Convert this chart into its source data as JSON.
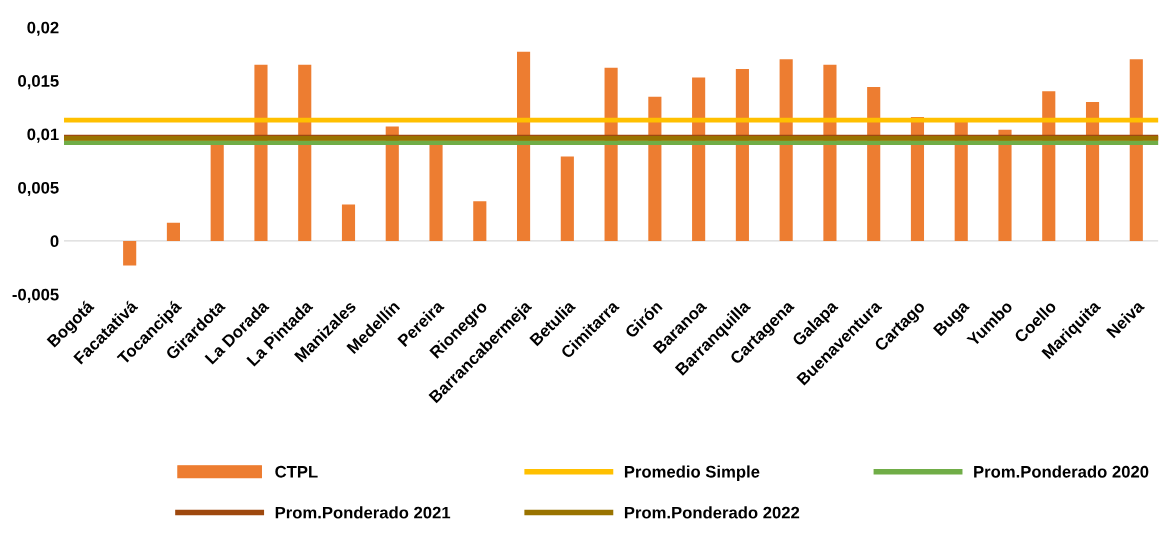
{
  "chart_data": {
    "type": "bar",
    "categories": [
      "Bogotá",
      "Facatativá",
      "Tocancipá",
      "Girardota",
      "La Dorada",
      "La Pintada",
      "Manizales",
      "Medellín",
      "Pereira",
      "Rionegro",
      "Barrancabermeja",
      "Betulia",
      "Cimitarra",
      "Girón",
      "Baranoa",
      "Barranquilla",
      "Cartagena",
      "Galapa",
      "Buenaventura",
      "Cartago",
      "Buga",
      "Yumbo",
      "Coello",
      "Mariquita",
      "Neiva"
    ],
    "series": [
      {
        "name": "CTPL",
        "color": "#ed7d31",
        "values": [
          0,
          -0.0023,
          0.0017,
          0.0092,
          0.0165,
          0.0165,
          0.0034,
          0.0107,
          0.0093,
          0.0037,
          0.0177,
          0.0079,
          0.0162,
          0.0135,
          0.0153,
          0.0161,
          0.017,
          0.0165,
          0.0144,
          0.0116,
          0.0113,
          0.0104,
          0.014,
          0.013,
          0.017
        ]
      }
    ],
    "ref_lines": [
      {
        "axis": "y",
        "value": 0.0113,
        "label": "Promedio Simple",
        "color": "#ffc000"
      },
      {
        "axis": "y",
        "value": 0.0092,
        "label": "Prom.Ponderado 2020",
        "color": "#70ad47"
      },
      {
        "axis": "y",
        "value": 0.0097,
        "label": "Prom.Ponderado 2021",
        "color": "#9e480e"
      },
      {
        "axis": "y",
        "value": 0.0096,
        "label": "Prom.Ponderado 2022",
        "color": "#997300"
      }
    ],
    "ylim": [
      -0.005,
      0.02
    ],
    "yticks": [
      {
        "value": -0.005,
        "label": "-0,005"
      },
      {
        "value": 0,
        "label": "0"
      },
      {
        "value": 0.005,
        "label": "0,005"
      },
      {
        "value": 0.01,
        "label": "0,01"
      },
      {
        "value": 0.015,
        "label": "0,015"
      },
      {
        "value": 0.02,
        "label": "0,02"
      }
    ],
    "grid": false,
    "legend": "bottom"
  }
}
